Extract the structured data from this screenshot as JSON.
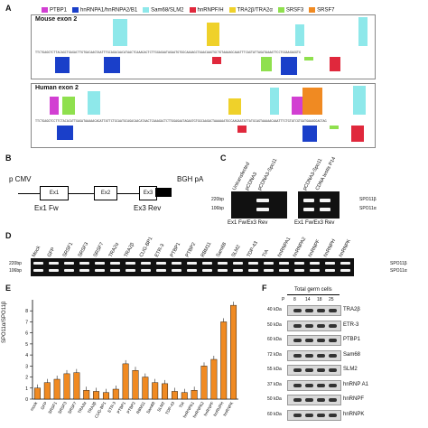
{
  "panels": {
    "A": "A",
    "B": "B",
    "C": "C",
    "D": "D",
    "E": "E",
    "F": "F"
  },
  "legend": [
    {
      "label": "PTBP1",
      "color": "#d23fd2"
    },
    {
      "label": "hnRNPA1/hnRNPA2/B1",
      "color": "#1a3fc9"
    },
    {
      "label": "Sam68/SLM2",
      "color": "#8ee8ea"
    },
    {
      "label": "hnRNPF/H",
      "color": "#e0283c"
    },
    {
      "label": "TRA2β/TRA2α",
      "color": "#efd12a"
    },
    {
      "label": "SRSF3",
      "color": "#8fe04e"
    },
    {
      "label": "SRSF7",
      "color": "#f08a22"
    }
  ],
  "panelA": {
    "mouse_title": "Mouse exon 2",
    "human_title": "Human exon 2",
    "mouse_seq": "TTCTGAGGTCTTACAGCTGAGACTTGTGACAAGTAATTTGCAGACAACATAACTCAAAGACTCTTGGAGAATAGAATGTGGCAAAAGCTAAACAAGTGCTGTAAAAGCAAATTTCAGTATTAGATAAAATTCCTGGAAGAGGTG",
    "human_seq": "TTCTGAGGTCCTTCTACACATTGAGATAAAAACAGATTATTCTGCAATGCAGACAACATAACTCAAAGACTCTTGGAGAATAGAATGTGGCAAGACTAAAAAATGCCAAGAATATTATGCAGTAAAAACAAATTTCTGTATCGTGATGAAAGGAGTAG"
  },
  "panelB": {
    "pcmv": "p CMV",
    "bgh": "BGH pA",
    "ex1": "Ex1",
    "ex2": "Ex2",
    "ex3": "Ex3",
    "fw": "Ex1 Fw",
    "rev": "Ex3 Rev"
  },
  "panelC": {
    "lanes": [
      "Untransfected",
      "pCDNA3",
      "pCDNA3-Spo11",
      "pCDNA3-Spo11",
      "CDNA testis P14"
    ],
    "marker_220": "220bp",
    "marker_106": "106bp",
    "caption": "Ex1 Fw/Ex3 Rev",
    "caption2": "Ex1 Fw/Ex3 Rev",
    "iso_b": "SPO11β",
    "iso_a": "SPO11α"
  },
  "panelD": {
    "lanes": [
      "Mock",
      "GFP",
      "SRSF1",
      "SRSF3",
      "SRSF7",
      "TRA2α",
      "TRA2β",
      "CUG-BP1",
      "ETR-3",
      "PTBP1",
      "PTBP2",
      "RBM11",
      "Sam68",
      "SLM2",
      "TDP-43",
      "TIA",
      "hnRNPA1",
      "hnRNPA2",
      "hnRNPF",
      "hnRNPH",
      "hnRNPK"
    ],
    "marker_220": "220bp",
    "marker_106": "106bp",
    "iso_b": "SPO11β",
    "iso_a": "SPO11α"
  },
  "panelE": {
    "ylabel": "SPO11α/SPO11β",
    "yticks": [
      "0",
      "1",
      "2",
      "3",
      "4",
      "5",
      "6",
      "7",
      "8"
    ],
    "axis_break_label": "//"
  },
  "chart_data": {
    "type": "bar",
    "title": "",
    "ylabel": "SPO11α/SPO11β",
    "xlabel": "",
    "categories": [
      "mock",
      "GFP",
      "SRSF1",
      "SRSF3",
      "SRSF7",
      "TRA2α",
      "TRA2β",
      "CUG-BP1",
      "ETR-3",
      "PTBP1",
      "PTBP2",
      "RBM11",
      "Sam68",
      "SLM2",
      "TDP-43",
      "TIA",
      "hnRNPA1",
      "hnRNPA2",
      "hnRNPF",
      "hnRNPH",
      "hnRNPK"
    ],
    "values": [
      1.0,
      1.5,
      1.8,
      2.3,
      2.4,
      0.8,
      0.7,
      0.6,
      0.9,
      3.2,
      2.6,
      2.0,
      1.5,
      1.4,
      0.7,
      0.6,
      0.8,
      3.0,
      3.6,
      7.0,
      8.5
    ],
    "ylim": [
      0,
      9
    ]
  },
  "panelF": {
    "header": "Total germ cells",
    "days": [
      "P",
      "8",
      "14",
      "18",
      "25"
    ],
    "rows": [
      {
        "kda": "40 kDa",
        "label": "TRA2β"
      },
      {
        "kda": "50 kDa",
        "label": "ETR-3"
      },
      {
        "kda": "60 kDa",
        "label": "PTBP1"
      },
      {
        "kda": "72 kDa",
        "label": "Sam68"
      },
      {
        "kda": "55 kDa",
        "label": "SLM2"
      },
      {
        "kda": "37 kDa",
        "label": "hnRNP A1"
      },
      {
        "kda": "50 kDa",
        "label": "hnRNPF"
      },
      {
        "kda": "60 kDa",
        "label": "hnRNPK"
      }
    ]
  }
}
